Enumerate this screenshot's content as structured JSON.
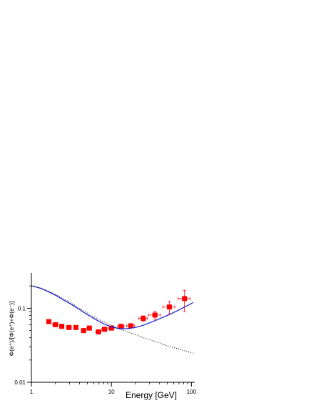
{
  "chart_data": {
    "type": "scatter",
    "xlabel": "Energy [GeV]",
    "ylabel": "Φ(e⁺)/[Φ(e⁺)+Φ(e⁻)]",
    "x_scale": "log",
    "y_scale": "log",
    "xlim": [
      1,
      110
    ],
    "ylim": [
      0.01,
      0.3
    ],
    "x_ticks": [
      {
        "value": 1,
        "label": "1"
      },
      {
        "value": 10,
        "label": "10"
      },
      {
        "value": 100,
        "label": "100"
      }
    ],
    "y_ticks": [
      {
        "value": 0.01,
        "label": "0.01"
      },
      {
        "value": 0.1,
        "label": "0.1"
      }
    ],
    "grid": false,
    "legend": "none",
    "series": [
      {
        "kind": "points",
        "color": "#ff0000",
        "marker": "square",
        "points": [
          {
            "x": 1.65,
            "y": 0.066,
            "xerr": [
              0.1,
              0.1
            ],
            "yerr": [
              0.004,
              0.004
            ]
          },
          {
            "x": 2.0,
            "y": 0.06,
            "xerr": [
              0.15,
              0.15
            ],
            "yerr": [
              0.003,
              0.003
            ]
          },
          {
            "x": 2.4,
            "y": 0.057,
            "xerr": [
              0.15,
              0.15
            ],
            "yerr": [
              0.003,
              0.003
            ]
          },
          {
            "x": 2.95,
            "y": 0.055,
            "xerr": [
              0.2,
              0.2
            ],
            "yerr": [
              0.003,
              0.003
            ]
          },
          {
            "x": 3.6,
            "y": 0.055,
            "xerr": [
              0.2,
              0.2
            ],
            "yerr": [
              0.003,
              0.003
            ]
          },
          {
            "x": 4.5,
            "y": 0.05,
            "xerr": [
              0.3,
              0.3
            ],
            "yerr": [
              0.003,
              0.003
            ]
          },
          {
            "x": 5.3,
            "y": 0.054,
            "xerr": [
              0.35,
              0.35
            ],
            "yerr": [
              0.003,
              0.003
            ]
          },
          {
            "x": 6.9,
            "y": 0.048,
            "xerr": [
              0.5,
              0.5
            ],
            "yerr": [
              0.003,
              0.003
            ]
          },
          {
            "x": 8.2,
            "y": 0.052,
            "xerr": [
              0.6,
              0.6
            ],
            "yerr": [
              0.003,
              0.003
            ]
          },
          {
            "x": 10.0,
            "y": 0.054,
            "xerr": [
              0.8,
              0.8
            ],
            "yerr": [
              0.003,
              0.003
            ]
          },
          {
            "x": 13.2,
            "y": 0.057,
            "xerr": [
              1.2,
              1.2
            ],
            "yerr": [
              0.003,
              0.003
            ]
          },
          {
            "x": 17.5,
            "y": 0.058,
            "xerr": [
              2.0,
              2.0
            ],
            "yerr": [
              0.004,
              0.004
            ]
          },
          {
            "x": 25.0,
            "y": 0.073,
            "xerr": [
              3.0,
              3.0
            ],
            "yerr": [
              0.006,
              0.006
            ]
          },
          {
            "x": 35.0,
            "y": 0.081,
            "xerr": [
              6.0,
              6.0
            ],
            "yerr": [
              0.01,
              0.01
            ]
          },
          {
            "x": 53.0,
            "y": 0.104,
            "xerr": [
              9.0,
              9.0
            ],
            "yerr": [
              0.02,
              0.02
            ]
          },
          {
            "x": 82.0,
            "y": 0.135,
            "xerr": [
              14.0,
              14.0
            ],
            "yerr": [
              0.045,
              0.04
            ]
          }
        ]
      },
      {
        "kind": "line",
        "style": "solid",
        "color": "#1a1ad4",
        "x": [
          1.0,
          1.3,
          1.6,
          2.0,
          2.5,
          3.2,
          4.0,
          5.0,
          6.3,
          7.9,
          10.0,
          12.6,
          15.8,
          20.0,
          25.1,
          31.6,
          39.8,
          50.1,
          63.1,
          79.4,
          100.0,
          105.0
        ],
        "y": [
          0.202,
          0.186,
          0.169,
          0.15,
          0.13,
          0.112,
          0.096,
          0.082,
          0.071,
          0.062,
          0.056,
          0.053,
          0.053,
          0.055,
          0.059,
          0.065,
          0.072,
          0.08,
          0.09,
          0.102,
          0.116,
          0.12
        ]
      },
      {
        "kind": "line",
        "style": "dotted",
        "color": "#000000",
        "x": [
          1.0,
          1.3,
          1.6,
          2.0,
          2.5,
          3.2,
          4.0,
          5.0,
          6.3,
          7.9,
          10.0,
          12.6,
          15.8,
          20.0,
          25.1,
          31.6,
          39.8,
          50.1,
          63.1,
          79.4,
          100.0,
          105.0
        ],
        "y": [
          0.202,
          0.188,
          0.172,
          0.154,
          0.135,
          0.116,
          0.1,
          0.086,
          0.075,
          0.066,
          0.059,
          0.053,
          0.048,
          0.044,
          0.04,
          0.037,
          0.034,
          0.031,
          0.029,
          0.027,
          0.025,
          0.0247
        ]
      }
    ]
  }
}
